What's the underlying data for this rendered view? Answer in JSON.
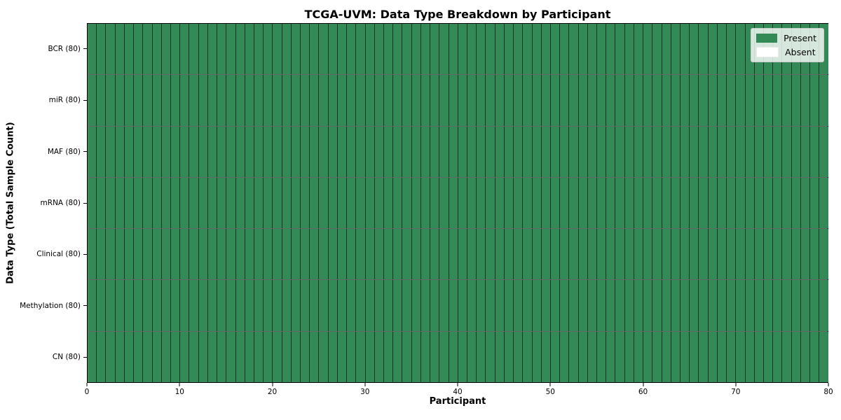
{
  "chart_data": {
    "type": "heatmap",
    "title": "TCGA-UVM: Data Type Breakdown by Participant",
    "xlabel": "Participant",
    "ylabel": "Data Type (Total Sample Count)",
    "xlim": [
      0,
      80
    ],
    "x_ticks": [
      0,
      10,
      20,
      30,
      40,
      50,
      60,
      70,
      80
    ],
    "n_participants": 80,
    "rows": [
      {
        "label": "BCR (80)",
        "present_count": 80,
        "absent_count": 0
      },
      {
        "label": "miR (80)",
        "present_count": 80,
        "absent_count": 0
      },
      {
        "label": "MAF (80)",
        "present_count": 80,
        "absent_count": 0
      },
      {
        "label": "mRNA (80)",
        "present_count": 80,
        "absent_count": 0
      },
      {
        "label": "Clinical (80)",
        "present_count": 80,
        "absent_count": 0
      },
      {
        "label": "Methylation (80)",
        "present_count": 80,
        "absent_count": 0
      },
      {
        "label": "CN (80)",
        "present_count": 80,
        "absent_count": 0
      }
    ],
    "legend": {
      "position": "upper-right",
      "entries": [
        {
          "label": "Present",
          "color": "#348a57"
        },
        {
          "label": "Absent",
          "color": "#ffffff"
        }
      ]
    },
    "colors": {
      "present": "#348a57",
      "absent": "#ffffff",
      "grid_line": "rgba(0,0,0,0.6)",
      "axis": "#000000",
      "background": "#ffffff"
    },
    "grid": true
  }
}
